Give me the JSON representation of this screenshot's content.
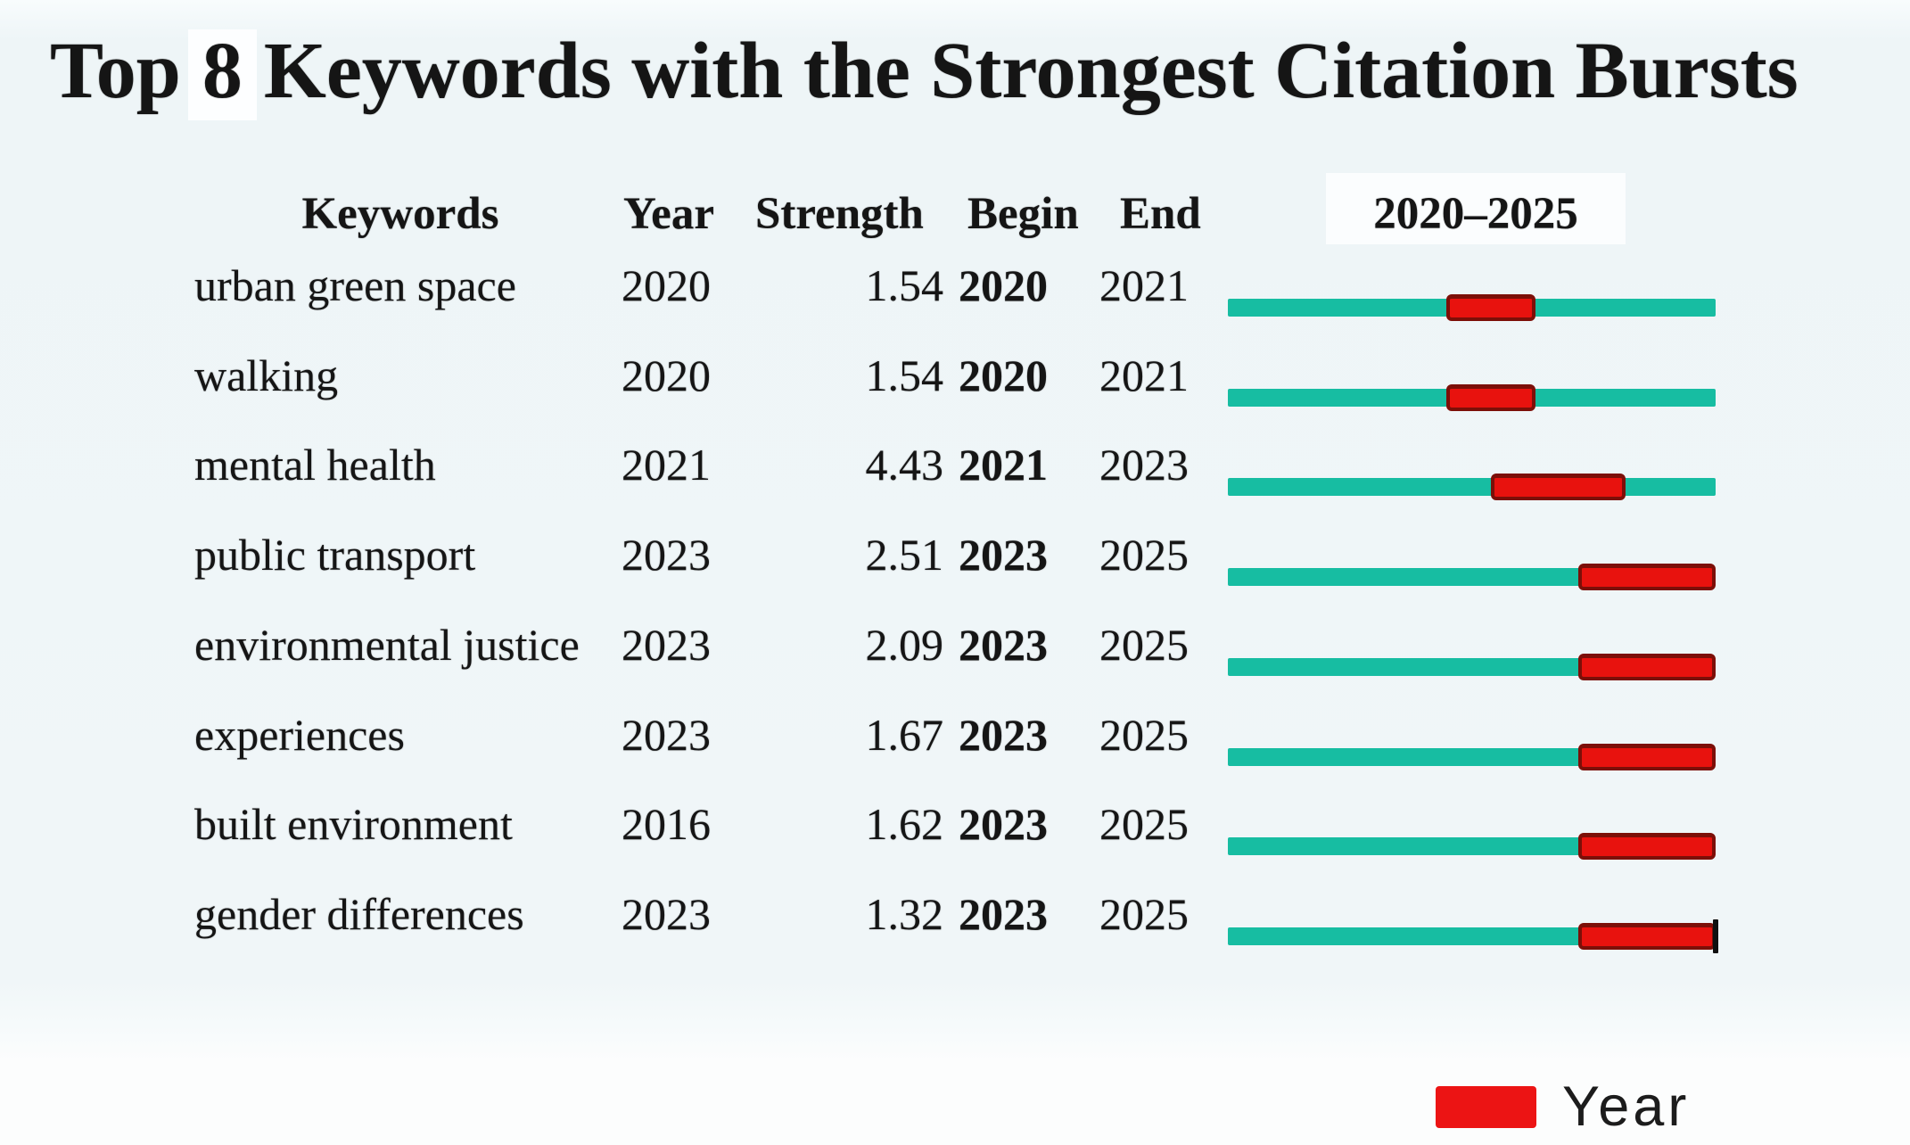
{
  "title": {
    "prefix": "Top",
    "number": "8",
    "suffix": "Keywords with the Strongest Citation Bursts"
  },
  "header": {
    "keywords": "Keywords",
    "year": "Year",
    "strength": "Strength",
    "begin": "Begin",
    "end": "End",
    "range": "2020–2025"
  },
  "legend": {
    "label": "Year",
    "swatch_color": "#ec1414"
  },
  "colors": {
    "timeline_teal": "#17bda2",
    "burst_red": "#e8120e",
    "burst_border": "#7c0f08",
    "background": "#f0f6f8"
  },
  "chart_data": {
    "type": "table",
    "title": "Top 8 Keywords with the Strongest Citation Bursts",
    "columns": [
      "Keywords",
      "Year",
      "Strength",
      "Begin",
      "End",
      "2020–2025"
    ],
    "timeline_range": [
      2020,
      2025
    ],
    "legend": {
      "label": "Year",
      "swatch_color": "#ec1414"
    },
    "rows": [
      {
        "keyword": "urban green space",
        "year": "2020",
        "strength": "1.54",
        "begin": "2020",
        "end": "2021",
        "burst_bar": {
          "left_pct": 44.8,
          "width_pct": 18.3
        },
        "end_tick": false
      },
      {
        "keyword": "walking",
        "year": "2020",
        "strength": "1.54",
        "begin": "2020",
        "end": "2021",
        "burst_bar": {
          "left_pct": 44.8,
          "width_pct": 18.3
        },
        "end_tick": false
      },
      {
        "keyword": "mental health",
        "year": "2021",
        "strength": "4.43",
        "begin": "2021",
        "end": "2023",
        "burst_bar": {
          "left_pct": 53.9,
          "width_pct": 27.6
        },
        "end_tick": false
      },
      {
        "keyword": "public transport",
        "year": "2023",
        "strength": "2.51",
        "begin": "2023",
        "end": "2025",
        "burst_bar": {
          "left_pct": 71.8,
          "width_pct": 28.2
        },
        "end_tick": false
      },
      {
        "keyword": "environmental justice",
        "year": "2023",
        "strength": "2.09",
        "begin": "2023",
        "end": "2025",
        "burst_bar": {
          "left_pct": 71.8,
          "width_pct": 28.2
        },
        "end_tick": false
      },
      {
        "keyword": "experiences",
        "year": "2023",
        "strength": "1.67",
        "begin": "2023",
        "end": "2025",
        "burst_bar": {
          "left_pct": 71.8,
          "width_pct": 28.2
        },
        "end_tick": false
      },
      {
        "keyword": "built environment",
        "year": "2016",
        "strength": "1.62",
        "begin": "2023",
        "end": "2025",
        "burst_bar": {
          "left_pct": 71.8,
          "width_pct": 28.2
        },
        "end_tick": false
      },
      {
        "keyword": "gender differences",
        "year": "2023",
        "strength": "1.32",
        "begin": "2023",
        "end": "2025",
        "burst_bar": {
          "left_pct": 71.8,
          "width_pct": 28.2
        },
        "end_tick": true
      }
    ]
  }
}
